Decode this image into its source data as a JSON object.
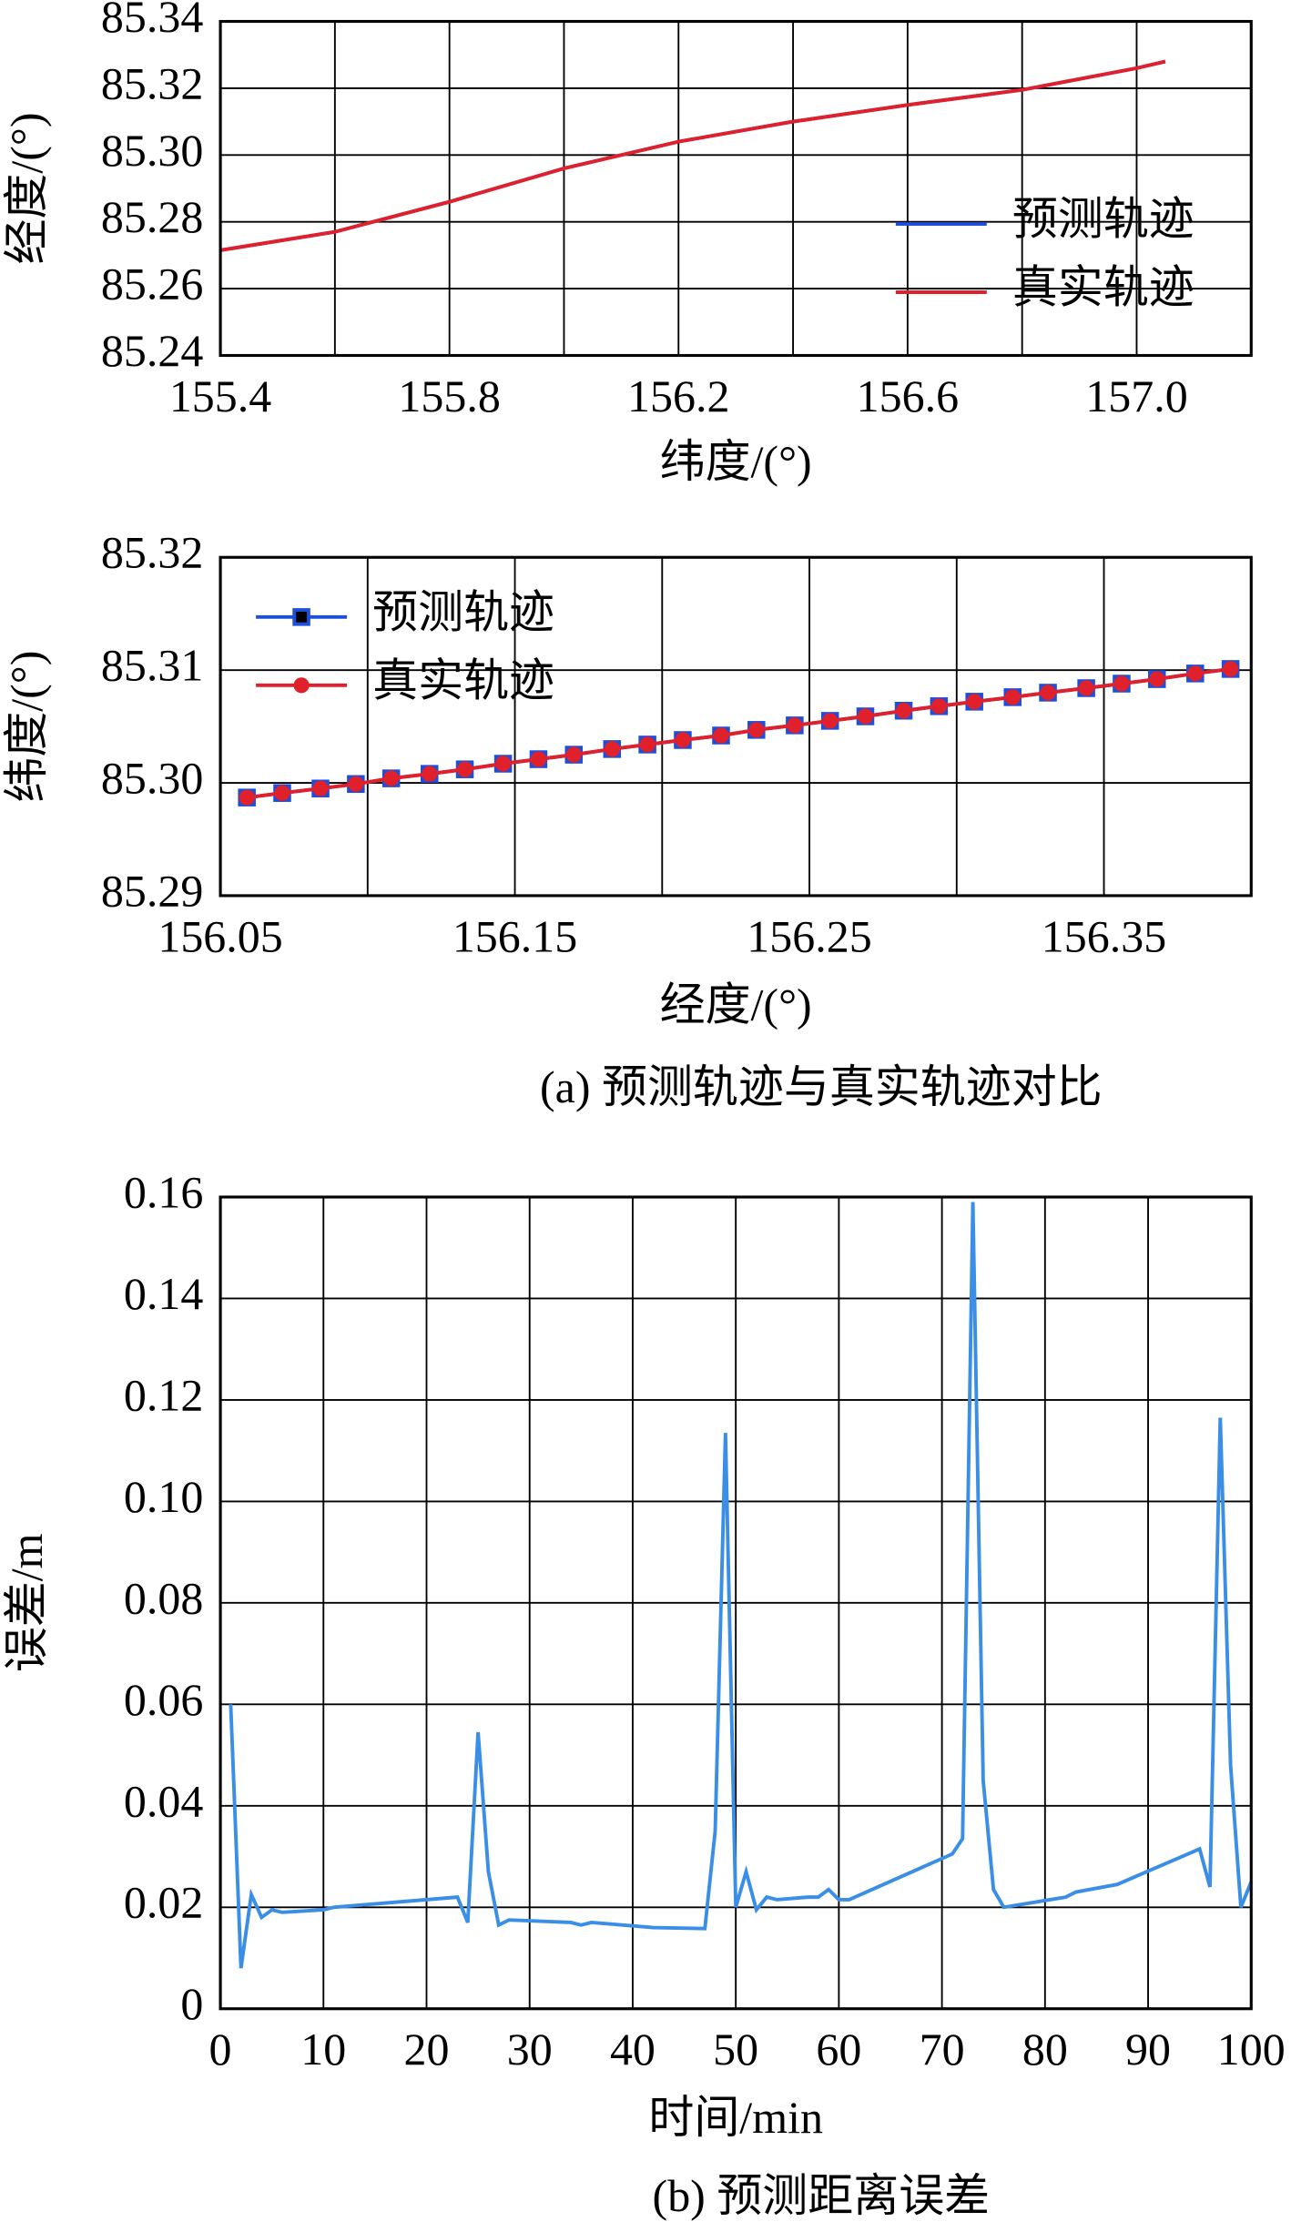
{
  "chart_data": [
    {
      "type": "line",
      "xlabel": "纬度/(°)",
      "ylabel": "经度/(°)",
      "x": [
        155.4,
        155.6,
        155.8,
        156.0,
        156.2,
        156.4,
        156.6,
        156.8,
        157.0,
        157.05
      ],
      "series": [
        {
          "name": "预测轨迹",
          "color": "#1f4fd8",
          "values": [
            85.2715,
            85.277,
            85.286,
            85.296,
            85.304,
            85.31,
            85.315,
            85.3195,
            85.326,
            85.328
          ]
        },
        {
          "name": "真实轨迹",
          "color": "#e0202a",
          "values": [
            85.2715,
            85.277,
            85.286,
            85.296,
            85.304,
            85.31,
            85.315,
            85.3195,
            85.326,
            85.328
          ]
        }
      ],
      "xlim": [
        155.4,
        157.2
      ],
      "xticks": [
        155.4,
        155.8,
        156.2,
        156.6,
        {
          "value": 157,
          "label": "157.0"
        }
      ],
      "xticks_minor": [
        155.6,
        156.0,
        156.4,
        156.8
      ],
      "ylim": [
        85.24,
        85.34
      ],
      "yticks": [
        85.24,
        85.26,
        85.28,
        {
          "value": 85.3,
          "label": "85.30"
        },
        85.32,
        85.34
      ],
      "grid": true,
      "legend": "center right"
    },
    {
      "type": "line",
      "xlabel": "经度/(°)",
      "ylabel": "纬度/(°)",
      "caption": "(a) 预测轨迹与真实轨迹对比",
      "x": [
        156.059,
        156.071,
        156.084,
        156.096,
        156.108,
        156.121,
        156.133,
        156.146,
        156.158,
        156.17,
        156.183,
        156.195,
        156.207,
        156.22,
        156.232,
        156.245,
        156.257,
        156.269,
        156.282,
        156.294,
        156.306,
        156.319,
        156.331,
        156.344,
        156.356,
        156.368,
        156.381,
        156.393
      ],
      "series": [
        {
          "name": "预测轨迹",
          "color": "#1f4fd8",
          "marker": "square",
          "values": [
            85.2987,
            85.2991,
            85.2995,
            85.2999,
            85.3004,
            85.3008,
            85.3012,
            85.3017,
            85.3021,
            85.3025,
            85.303,
            85.3034,
            85.3038,
            85.3042,
            85.3047,
            85.3051,
            85.3055,
            85.3059,
            85.3064,
            85.3068,
            85.3072,
            85.3076,
            85.308,
            85.3084,
            85.3088,
            85.3092,
            85.3097,
            85.3101
          ]
        },
        {
          "name": "真实轨迹",
          "color": "#e0202a",
          "marker": "circle",
          "values": [
            85.2987,
            85.2991,
            85.2995,
            85.2999,
            85.3004,
            85.3008,
            85.3012,
            85.3017,
            85.3021,
            85.3025,
            85.303,
            85.3034,
            85.3038,
            85.3042,
            85.3047,
            85.3051,
            85.3055,
            85.3059,
            85.3064,
            85.3068,
            85.3072,
            85.3076,
            85.308,
            85.3084,
            85.3088,
            85.3092,
            85.3097,
            85.3101
          ]
        }
      ],
      "xlim": [
        156.05,
        156.4
      ],
      "xticks": [
        156.05,
        156.15,
        156.25,
        156.35
      ],
      "xticks_minor": [
        156.1,
        156.2,
        156.3
      ],
      "ylim": [
        85.29,
        85.32
      ],
      "yticks": [
        85.29,
        {
          "value": 85.3,
          "label": "85.30"
        },
        85.31,
        85.32
      ],
      "grid": true,
      "legend": "upper left"
    },
    {
      "type": "line",
      "xlabel": "时间/min",
      "ylabel": "误差/m",
      "caption": "(b) 预测距离误差",
      "x": [
        1,
        2,
        3,
        4,
        5,
        6,
        10,
        11,
        23,
        24,
        25,
        26,
        27,
        28,
        34,
        35,
        36,
        42,
        47,
        48,
        49,
        50,
        51,
        52,
        53,
        54,
        57,
        58,
        59,
        60,
        61,
        71,
        72,
        73,
        74,
        75,
        76,
        82,
        83,
        87,
        91,
        95,
        96,
        97,
        98,
        99,
        100
      ],
      "series": [
        {
          "color": "#3a8ee6",
          "values": [
            0.06,
            0.008,
            0.0225,
            0.018,
            0.0195,
            0.019,
            0.0195,
            0.02,
            0.022,
            0.017,
            0.0545,
            0.027,
            0.0165,
            0.0175,
            0.017,
            0.0165,
            0.017,
            0.016,
            0.0158,
            0.035,
            0.1135,
            0.02,
            0.027,
            0.0195,
            0.022,
            0.0215,
            0.022,
            0.022,
            0.0235,
            0.0215,
            0.0215,
            0.0305,
            0.0335,
            0.159,
            0.045,
            0.0235,
            0.02,
            0.022,
            0.023,
            0.0245,
            0.028,
            0.0315,
            0.024,
            0.1165,
            0.048,
            0.02,
            0.025
          ]
        }
      ],
      "xlim": [
        0,
        100
      ],
      "xticks": [
        0,
        10,
        20,
        30,
        40,
        50,
        60,
        70,
        80,
        90,
        100
      ],
      "ylim": [
        0,
        0.16
      ],
      "yticks": [
        0,
        0.02,
        0.04,
        0.06,
        0.08,
        {
          "value": 0.1,
          "label": "0.10"
        },
        0.12,
        0.14,
        0.16
      ],
      "grid": true
    }
  ]
}
